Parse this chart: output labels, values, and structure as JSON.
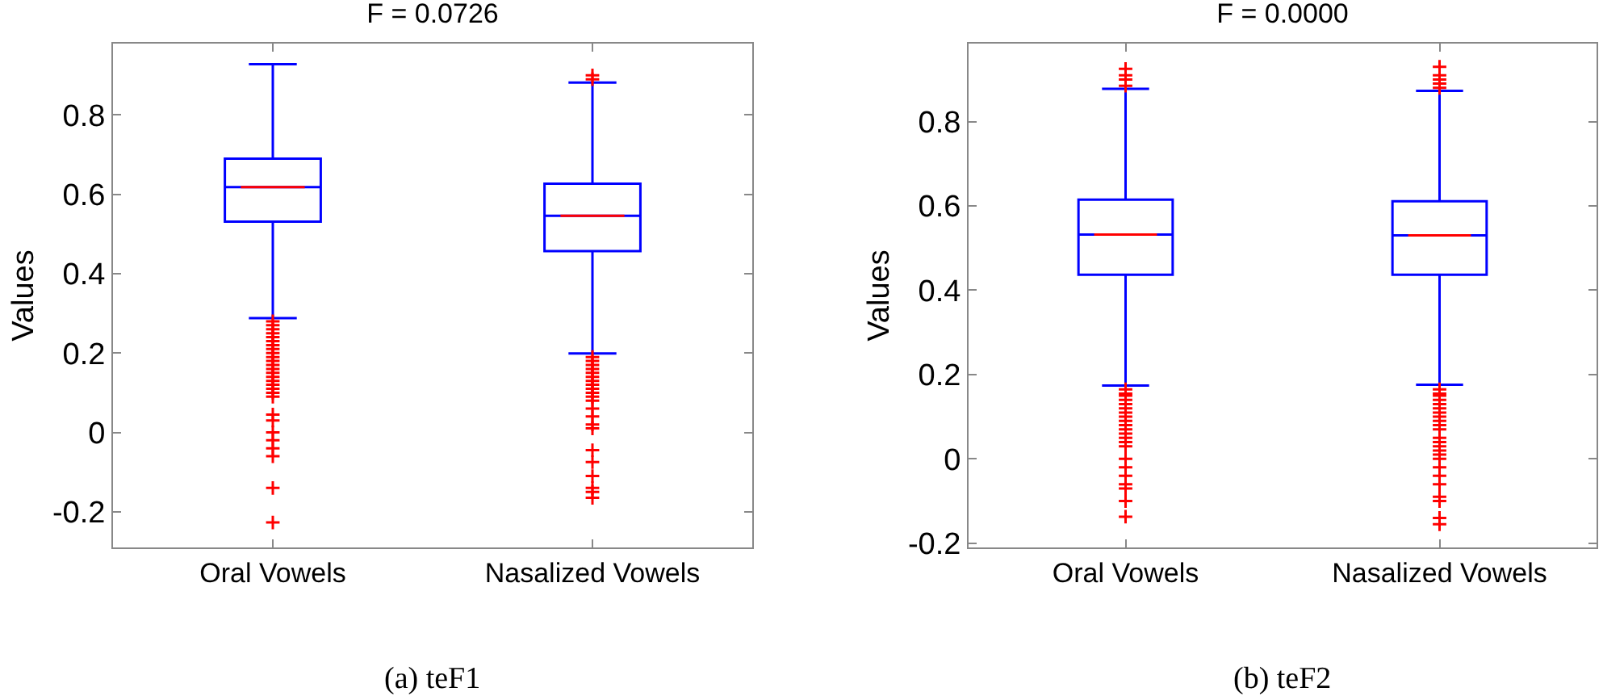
{
  "chart_data": [
    {
      "type": "box",
      "title": "F = 0.0726",
      "ylabel": "Values",
      "categories": [
        "Oral Vowels",
        "Nasalized Vowels"
      ],
      "color": "#0000ff",
      "marker": "cross",
      "ylim": [
        -0.29,
        0.98
      ],
      "yticks": [
        -0.2,
        0,
        0.2,
        0.4,
        0.6,
        0.8
      ],
      "boxes": [
        {
          "low": 0.288,
          "q1": 0.531,
          "median": 0.618,
          "q3": 0.69,
          "high": 0.928,
          "outliers": [
            0.28,
            0.27,
            0.26,
            0.25,
            0.24,
            0.23,
            0.22,
            0.21,
            0.2,
            0.19,
            0.18,
            0.17,
            0.16,
            0.15,
            0.14,
            0.13,
            0.12,
            0.11,
            0.1,
            0.09,
            0.045,
            0.03,
            0,
            -0.02,
            -0.04,
            -0.06,
            -0.14,
            -0.227
          ]
        },
        {
          "low": 0.199,
          "q1": 0.457,
          "median": 0.546,
          "q3": 0.627,
          "high": 0.882,
          "outliers": [
            0.89,
            0.9,
            0.19,
            0.18,
            0.17,
            0.16,
            0.15,
            0.14,
            0.13,
            0.12,
            0.11,
            0.1,
            0.09,
            0.08,
            0.06,
            0.04,
            0.02,
            0.01,
            -0.045,
            -0.075,
            -0.11,
            -0.14,
            -0.15,
            -0.165
          ]
        }
      ],
      "annotations": [
        "(a) teF1"
      ]
    },
    {
      "type": "box",
      "title": "F = 0.0000",
      "ylabel": "Values",
      "categories": [
        "Oral Vowels",
        "Nasalized Vowels"
      ],
      "color": "#0000ff",
      "marker": "cross",
      "ylim": [
        -0.21,
        0.985
      ],
      "yticks": [
        -0.2,
        0,
        0.2,
        0.4,
        0.6,
        0.8
      ],
      "boxes": [
        {
          "low": 0.174,
          "q1": 0.437,
          "median": 0.532,
          "q3": 0.615,
          "high": 0.878,
          "outliers": [
            0.885,
            0.9,
            0.91,
            0.925,
            0.165,
            0.155,
            0.15,
            0.14,
            0.13,
            0.12,
            0.11,
            0.1,
            0.09,
            0.08,
            0.07,
            0.06,
            0.05,
            0.04,
            0.03,
            0,
            -0.02,
            -0.04,
            -0.06,
            -0.07,
            -0.1,
            -0.137
          ]
        },
        {
          "low": 0.176,
          "q1": 0.437,
          "median": 0.53,
          "q3": 0.611,
          "high": 0.873,
          "outliers": [
            0.88,
            0.89,
            0.9,
            0.91,
            0.93,
            0.165,
            0.155,
            0.15,
            0.14,
            0.13,
            0.12,
            0.11,
            0.1,
            0.09,
            0.08,
            0.07,
            0.05,
            0.04,
            0.03,
            0.02,
            0.01,
            0,
            -0.02,
            -0.04,
            -0.06,
            -0.09,
            -0.1,
            -0.14,
            -0.155
          ]
        }
      ],
      "annotations": [
        "(b) teF2"
      ]
    }
  ]
}
